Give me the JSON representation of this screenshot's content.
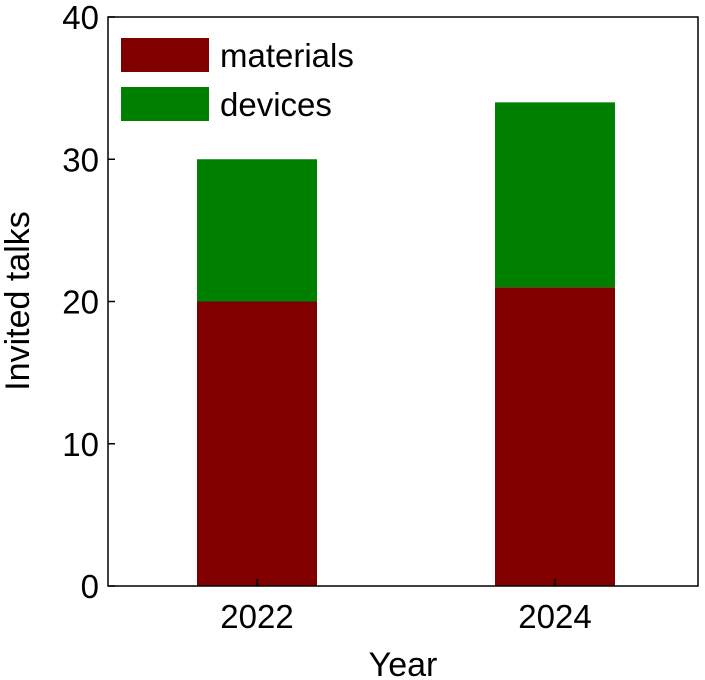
{
  "chart_data": {
    "type": "bar",
    "stacked": true,
    "categories": [
      "2022",
      "2024"
    ],
    "series": [
      {
        "name": "materials",
        "values": [
          20,
          21
        ],
        "color": "#800000"
      },
      {
        "name": "devices",
        "values": [
          10,
          13
        ],
        "color": "#008000"
      }
    ],
    "title": "",
    "xlabel": "Year",
    "ylabel": "Invited talks",
    "ylim": [
      0,
      40
    ],
    "yticks": [
      "0",
      "10",
      "20",
      "30",
      "40"
    ],
    "grid": false,
    "legend_position": "top-left"
  }
}
